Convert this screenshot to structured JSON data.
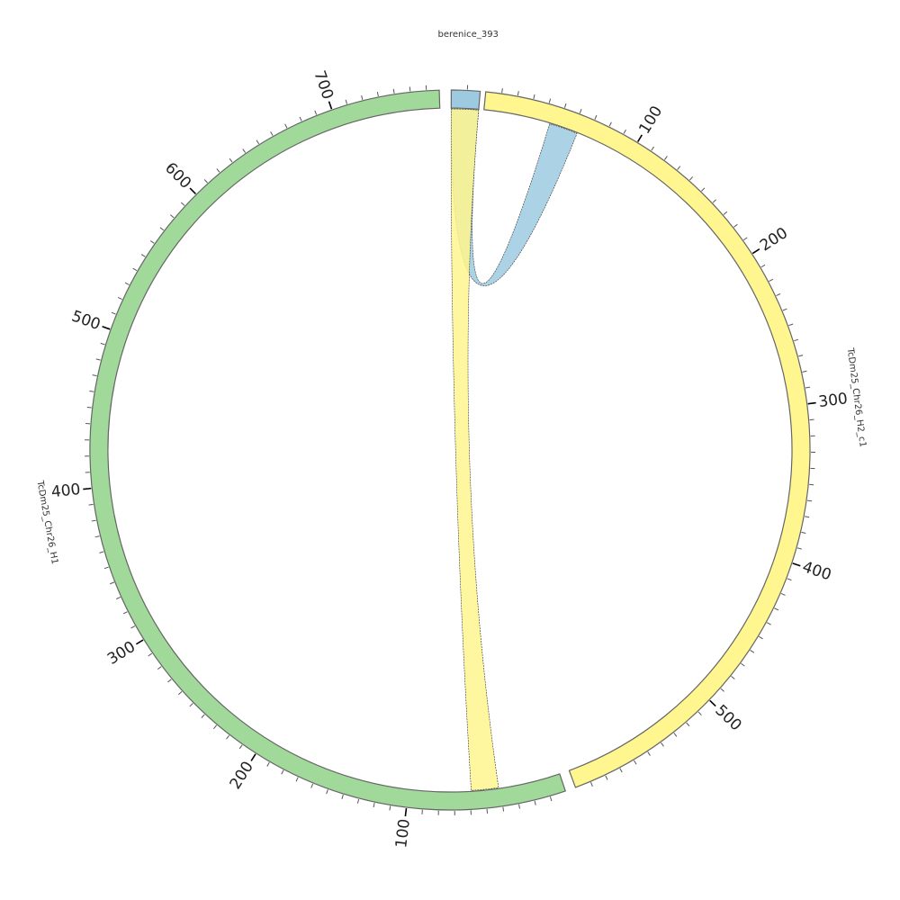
{
  "chart_data": {
    "type": "chord",
    "segments": [
      {
        "name": "berenice_393",
        "length": 18,
        "color": "#9ecae1",
        "tick_labels": []
      },
      {
        "name": "TcDm25_Chr26_H2_c1",
        "length": 600,
        "color": "#fff68f",
        "tick_labels": [
          "100",
          "200",
          "300",
          "400",
          "500"
        ]
      },
      {
        "name": "TcDm25_Chr26_H1",
        "length": 768,
        "color": "#a1d99b",
        "tick_labels": [
          "100",
          "200",
          "300",
          "400",
          "500",
          "600",
          "700"
        ]
      }
    ],
    "tick_interval": 10,
    "major_tick_interval": 100,
    "links": [
      {
        "source": "berenice_393",
        "source_range": [
          0,
          18
        ],
        "target": "TcDm25_Chr26_H2_c1",
        "target_range": [
          44,
          63
        ],
        "color": "#9ecae1"
      },
      {
        "source": "berenice_393",
        "source_range": [
          0,
          18
        ],
        "target": "TcDm25_Chr26_H1",
        "target_range": [
          41,
          59
        ],
        "color": "#fff68f"
      }
    ]
  }
}
